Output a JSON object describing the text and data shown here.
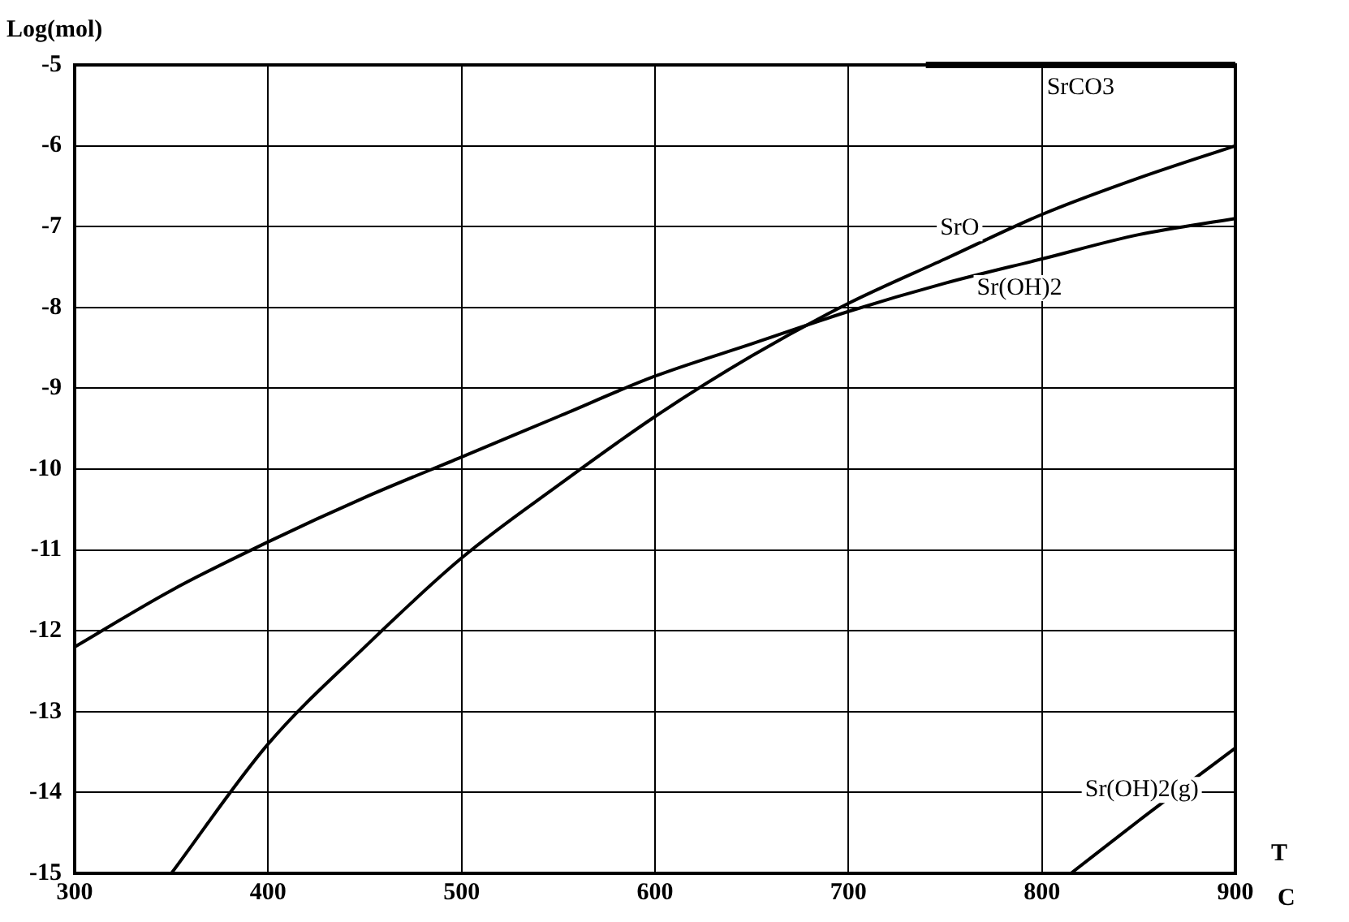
{
  "chart_data": {
    "type": "line",
    "xlabel": "T",
    "ylabel": "Log(mol)",
    "annotations": [
      "C"
    ],
    "xlim": [
      300,
      900
    ],
    "xticks": [
      300,
      400,
      500,
      600,
      700,
      800,
      900
    ],
    "ylim": [
      -15,
      -5
    ],
    "yticks": [
      -5,
      -6,
      -7,
      -8,
      -9,
      -10,
      -11,
      -12,
      -13,
      -14,
      -15
    ],
    "grid": true,
    "legend": false,
    "marker": "none",
    "line_style": "solid",
    "series": [
      {
        "name": "SrCO3",
        "color": "#000000",
        "x": [
          740,
          900
        ],
        "values": [
          -5,
          -5
        ]
      },
      {
        "name": "SrO",
        "color": "#000000",
        "x": [
          350,
          400,
          450,
          500,
          550,
          600,
          650,
          700,
          750,
          800,
          850,
          900
        ],
        "values": [
          -15,
          -13.4,
          -12.2,
          -11.1,
          -10.2,
          -9.35,
          -8.6,
          -7.95,
          -7.4,
          -6.85,
          -6.4,
          -6.0
        ]
      },
      {
        "name": "Sr(OH)2",
        "color": "#000000",
        "x": [
          300,
          350,
          400,
          450,
          500,
          550,
          600,
          650,
          700,
          750,
          800,
          850,
          900
        ],
        "values": [
          -12.2,
          -11.5,
          -10.9,
          -10.35,
          -9.85,
          -9.35,
          -8.85,
          -8.45,
          -8.05,
          -7.7,
          -7.4,
          -7.1,
          -6.9
        ]
      },
      {
        "name": "Sr(OH)2(g)",
        "color": "#000000",
        "x": [
          815,
          850,
          900
        ],
        "values": [
          -15,
          -14.35,
          -13.45
        ]
      }
    ]
  }
}
